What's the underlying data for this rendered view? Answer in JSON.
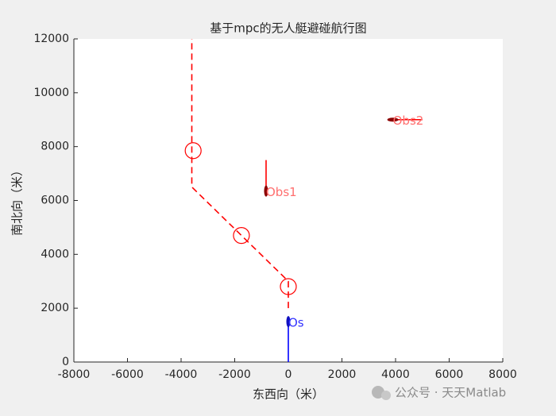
{
  "chart_data": {
    "type": "line",
    "title": "基于mpc的无人艇避碰航行图",
    "xlabel": "东西向（米）",
    "ylabel": "南北向（米）",
    "xlim": [
      -8000,
      8000
    ],
    "ylim": [
      0,
      12000
    ],
    "xticks": [
      -8000,
      -6000,
      -4000,
      -2000,
      0,
      2000,
      4000,
      6000,
      8000
    ],
    "yticks": [
      0,
      2000,
      4000,
      6000,
      8000,
      10000,
      12000
    ],
    "grid": false,
    "series": [
      {
        "color": "#ff0000",
        "style": "dashed",
        "x": [
          0,
          0,
          -3600,
          -3600
        ],
        "y": [
          2000,
          3000,
          6500,
          12000
        ]
      },
      {
        "color": "#0000ff",
        "style": "solid",
        "x": [
          0,
          0
        ],
        "y": [
          0,
          1500
        ]
      },
      {
        "color": "#ff0000",
        "style": "solid",
        "x": [
          -830,
          -830
        ],
        "y": [
          6300,
          7500
        ]
      },
      {
        "color": "#ff0000",
        "style": "solid",
        "x": [
          3900,
          5000
        ],
        "y": [
          9000,
          9000
        ]
      }
    ],
    "circles": {
      "color": "#ff0000",
      "x": [
        0,
        -1750,
        -3550
      ],
      "y": [
        2800,
        4700,
        7850
      ]
    },
    "vessels": [
      {
        "x": 0,
        "y": 1500,
        "color": "#1010c0",
        "orientation": "vertical"
      },
      {
        "x": -830,
        "y": 6350,
        "color": "#8b0000",
        "orientation": "vertical"
      },
      {
        "x": 3900,
        "y": 9000,
        "color": "#8b0000",
        "orientation": "horizontal"
      }
    ],
    "annotations": [
      {
        "text": "Os",
        "x": 0,
        "y": 1450,
        "color": "#3333ff"
      },
      {
        "text": "Obs1",
        "x": -830,
        "y": 6300,
        "color": "#ff6f6f"
      },
      {
        "text": "Obs2",
        "x": 3900,
        "y": 8950,
        "color": "#ff6f6f"
      }
    ]
  },
  "watermark": "公众号 · 天天Matlab"
}
